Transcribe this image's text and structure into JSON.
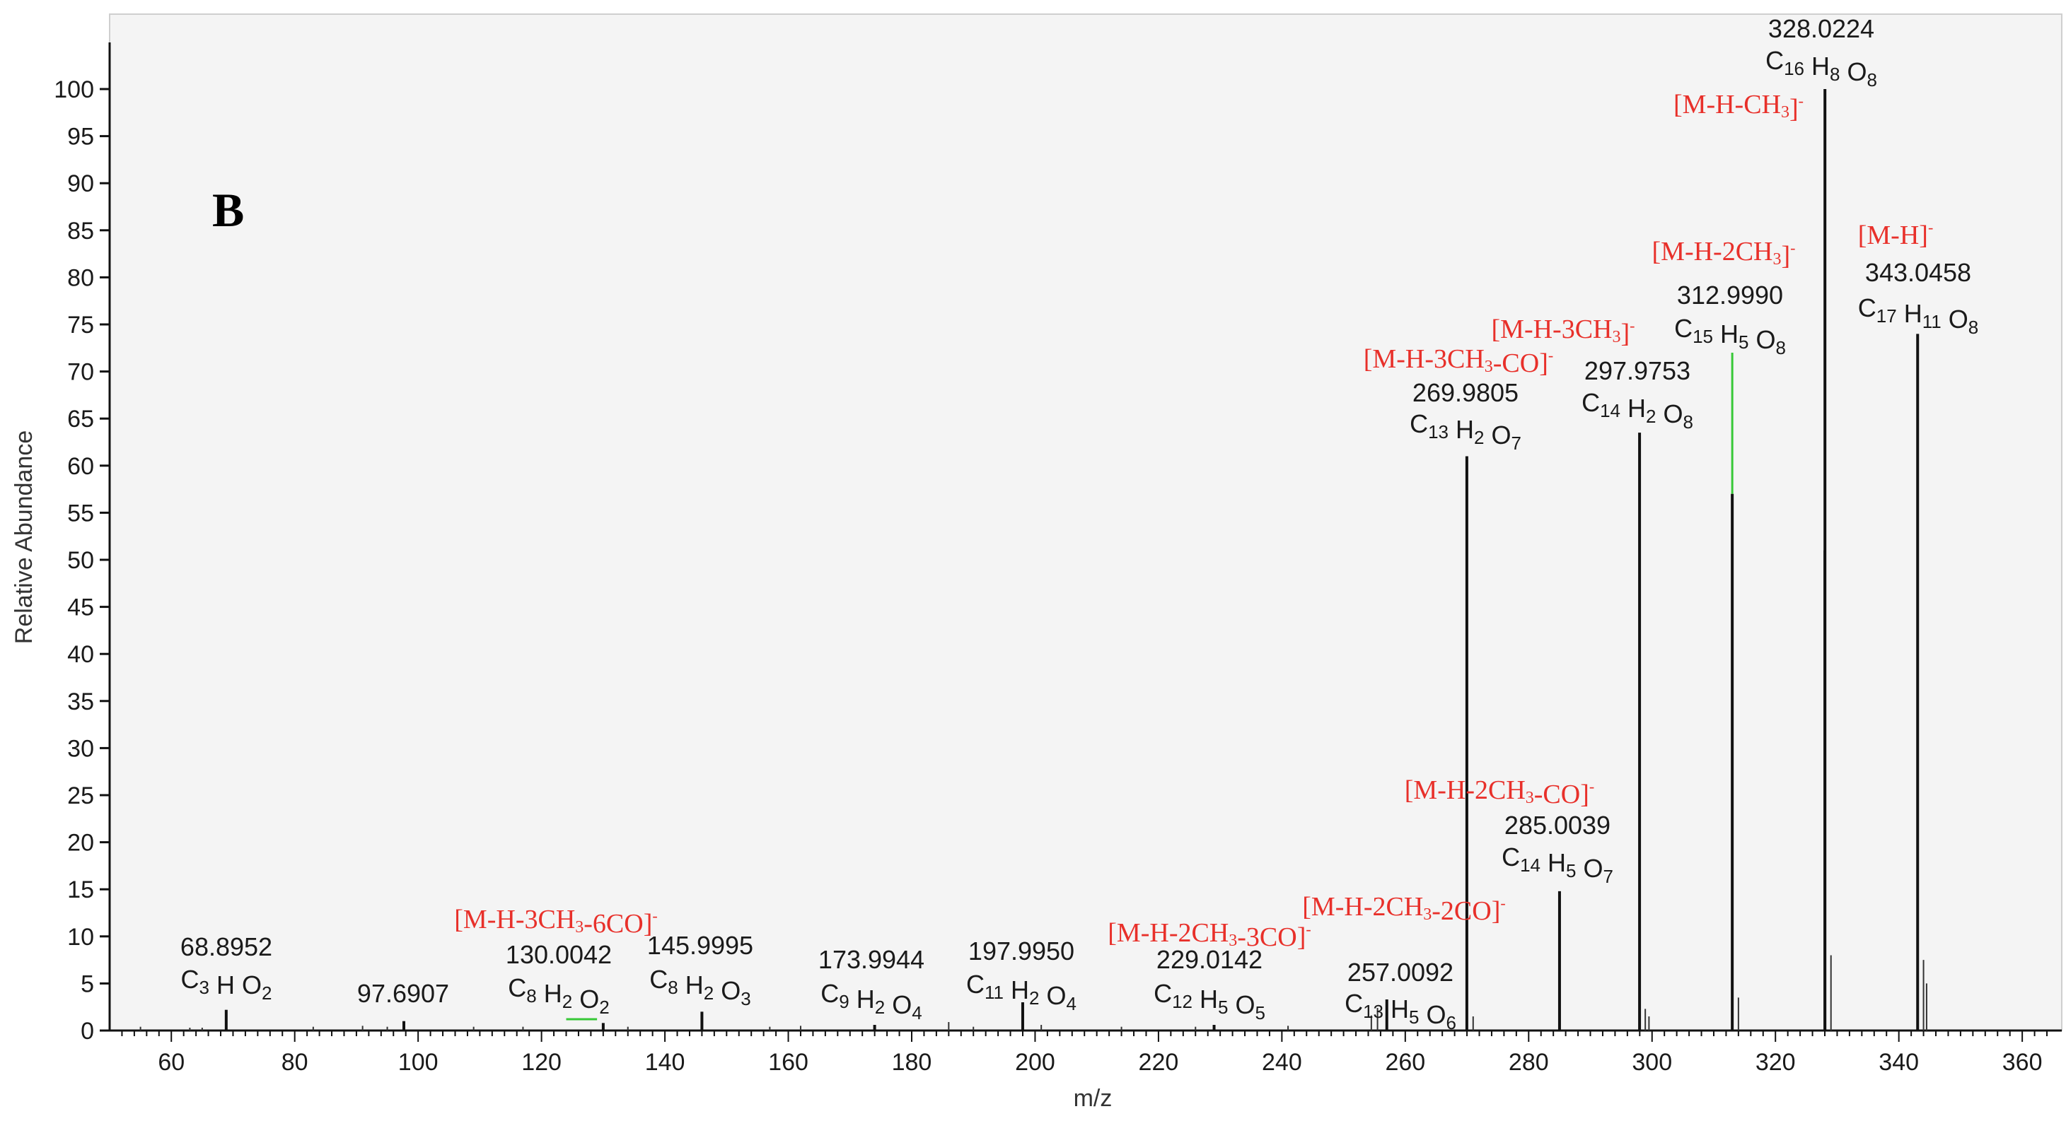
{
  "colors": {
    "ion_label": "#e8302a",
    "highlight": "#37c837",
    "peak": "#111111",
    "frame": "#cccccc"
  },
  "chart_data": {
    "type": "bar",
    "title": "",
    "panel_label": "B",
    "xlabel": "m/z",
    "ylabel": "Relative Abundance",
    "xlim": [
      50,
      365
    ],
    "ylim": [
      0,
      100
    ],
    "x_ticks": [
      "60",
      "80",
      "100",
      "120",
      "140",
      "160",
      "180",
      "200",
      "220",
      "240",
      "260",
      "280",
      "300",
      "320",
      "340",
      "360"
    ],
    "y_ticks": [
      "0",
      "5",
      "10",
      "15",
      "20",
      "25",
      "30",
      "35",
      "40",
      "45",
      "50",
      "55",
      "60",
      "65",
      "70",
      "75",
      "80",
      "85",
      "90",
      "95",
      "100"
    ],
    "peaks": [
      {
        "mz": 68.8952,
        "intensity": 2.2,
        "mz_label": "68.8952",
        "formula": {
          "C": "3",
          "H": "",
          "O": "2"
        },
        "ion": ""
      },
      {
        "mz": 97.6907,
        "intensity": 1.0,
        "mz_label": "97.6907",
        "formula": null,
        "ion": ""
      },
      {
        "mz": 130.0042,
        "intensity": 0.8,
        "mz_label": "130.0042",
        "formula": {
          "C": "8",
          "H": "2",
          "O": "2"
        },
        "ion": "[M-H-3CH3-6CO]-"
      },
      {
        "mz": 145.9995,
        "intensity": 2.0,
        "mz_label": "145.9995",
        "formula": {
          "C": "8",
          "H": "2",
          "O": "3"
        },
        "ion": ""
      },
      {
        "mz": 173.9944,
        "intensity": 0.6,
        "mz_label": "173.9944",
        "formula": {
          "C": "9",
          "H": "2",
          "O": "4"
        },
        "ion": ""
      },
      {
        "mz": 197.995,
        "intensity": 3.0,
        "mz_label": "197.9950",
        "formula": {
          "C": "11",
          "H": "2",
          "O": "4"
        },
        "ion": ""
      },
      {
        "mz": 229.0142,
        "intensity": 0.6,
        "mz_label": "229.0142",
        "formula": {
          "C": "12",
          "H": "5",
          "O": "5"
        },
        "ion": "[M-H-2CH3-3CO]-"
      },
      {
        "mz": 257.0092,
        "intensity": 3.3,
        "mz_label": "257.0092",
        "formula": {
          "C": "13",
          "H": "5",
          "O": "6"
        },
        "ion": "[M-H-2CH3-2CO]-"
      },
      {
        "mz": 269.9805,
        "intensity": 61.0,
        "mz_label": "269.9805",
        "formula": {
          "C": "13",
          "H": "2",
          "O": "7"
        },
        "ion": "[M-H-3CH3-CO]-"
      },
      {
        "mz": 285.0039,
        "intensity": 14.8,
        "mz_label": "285.0039",
        "formula": {
          "C": "14",
          "H": "5",
          "O": "7"
        },
        "ion": "[M-H-2CH3-CO]-"
      },
      {
        "mz": 297.9753,
        "intensity": 63.5,
        "mz_label": "297.9753",
        "formula": {
          "C": "14",
          "H": "2",
          "O": "8"
        },
        "ion": "[M-H-3CH3]-"
      },
      {
        "mz": 312.999,
        "intensity": 57.0,
        "mz_label": "312.9990",
        "formula": {
          "C": "15",
          "H": "5",
          "O": "8"
        },
        "ion": "[M-H-2CH3]-"
      },
      {
        "mz": 328.0224,
        "intensity": 100.0,
        "mz_label": "328.0224",
        "formula": {
          "C": "16",
          "H": "8",
          "O": "8"
        },
        "ion": "[M-H-CH3]-"
      },
      {
        "mz": 343.0458,
        "intensity": 74.0,
        "mz_label": "343.0458",
        "formula": {
          "C": "17",
          "H": "11",
          "O": "8"
        },
        "ion": "[M-H]-"
      }
    ],
    "minor_peaks": [
      {
        "mz": 55.0,
        "intensity": 0.4
      },
      {
        "mz": 63.0,
        "intensity": 0.3
      },
      {
        "mz": 65.0,
        "intensity": 0.3
      },
      {
        "mz": 83.0,
        "intensity": 0.4
      },
      {
        "mz": 91.0,
        "intensity": 0.5
      },
      {
        "mz": 95.0,
        "intensity": 0.4
      },
      {
        "mz": 109.0,
        "intensity": 0.4
      },
      {
        "mz": 117.0,
        "intensity": 0.4
      },
      {
        "mz": 134.0,
        "intensity": 0.4
      },
      {
        "mz": 157.0,
        "intensity": 0.4
      },
      {
        "mz": 162.0,
        "intensity": 0.5
      },
      {
        "mz": 186.0,
        "intensity": 0.9
      },
      {
        "mz": 190.0,
        "intensity": 0.4
      },
      {
        "mz": 201.0,
        "intensity": 0.6
      },
      {
        "mz": 214.0,
        "intensity": 0.4
      },
      {
        "mz": 226.0,
        "intensity": 0.4
      },
      {
        "mz": 241.0,
        "intensity": 0.5
      },
      {
        "mz": 254.5,
        "intensity": 1.6
      },
      {
        "mz": 255.5,
        "intensity": 2.4
      },
      {
        "mz": 271.0,
        "intensity": 1.5
      },
      {
        "mz": 298.9,
        "intensity": 2.3
      },
      {
        "mz": 299.5,
        "intensity": 1.5
      },
      {
        "mz": 314.0,
        "intensity": 3.5
      },
      {
        "mz": 327.9,
        "intensity": 51.0
      },
      {
        "mz": 329.0,
        "intensity": 8.0
      },
      {
        "mz": 344.0,
        "intensity": 7.5
      },
      {
        "mz": 344.5,
        "intensity": 5.0
      }
    ],
    "highlights": [
      {
        "mz": 312.999,
        "from": 57,
        "to": 72
      },
      {
        "mz_from": 124.0,
        "mz_to": 129.0,
        "at": 1.2
      }
    ]
  }
}
